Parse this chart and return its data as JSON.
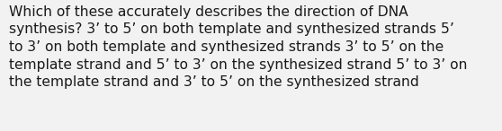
{
  "lines": [
    "Which of these accurately describes the direction of DNA",
    "synthesis? 3’ to 5’ on both template and synthesized strands 5’",
    "to 3’ on both template and synthesized strands 3’ to 5’ on the",
    "template strand and 5’ to 3’ on the synthesized strand 5’ to 3’ on",
    "the template strand and 3’ to 5’ on the synthesized strand"
  ],
  "background_color": "#f2f2f2",
  "text_color": "#1a1a1a",
  "font_size": 11.2,
  "fig_width": 5.58,
  "fig_height": 1.46,
  "dpi": 100
}
